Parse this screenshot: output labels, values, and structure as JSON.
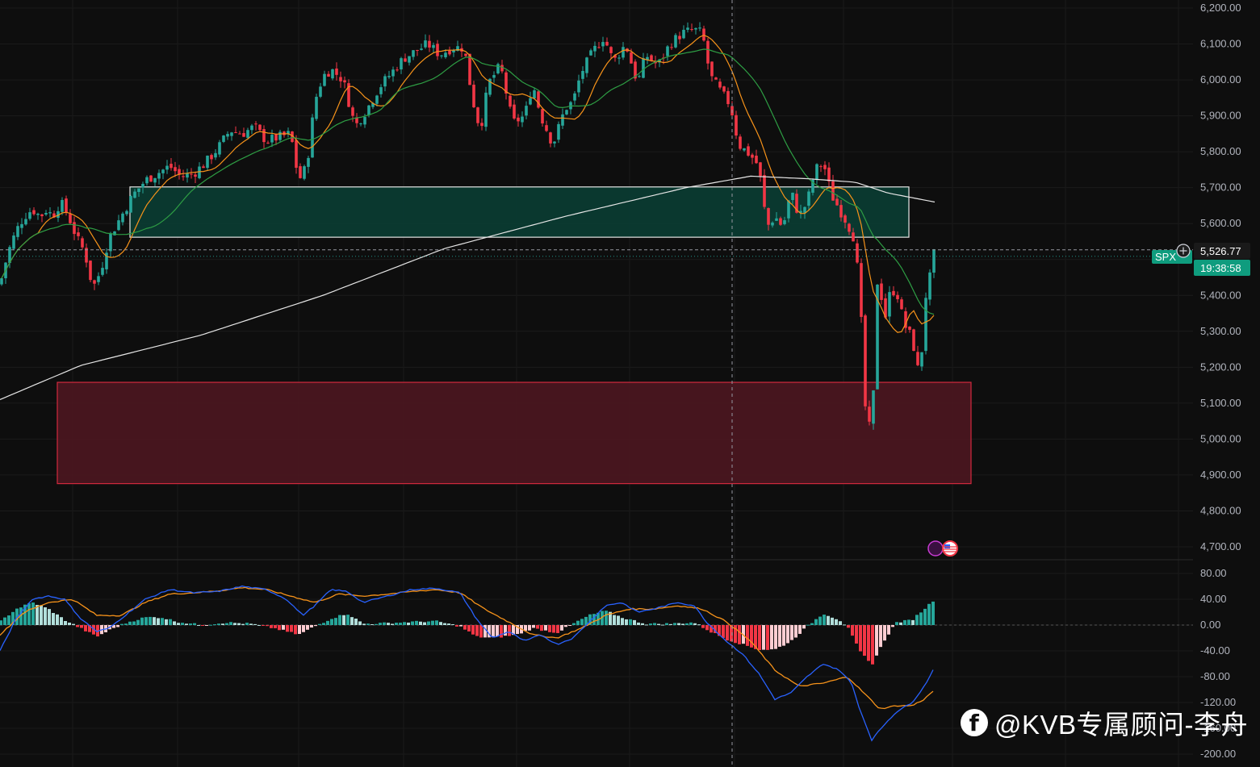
{
  "chart_data": [
    {
      "type": "candlestick",
      "symbol_tag": "SPX",
      "price_axis": {
        "ticks": [
          "6,200.00",
          "6,100.00",
          "6,000.00",
          "5,900.00",
          "5,800.00",
          "5,700.00",
          "5,600.00",
          "5,400.00",
          "5,300.00",
          "5,200.00",
          "5,100.00",
          "5,000.00",
          "4,900.00",
          "4,800.00",
          "4,700.00"
        ],
        "tick_values": [
          6200,
          6100,
          6000,
          5900,
          5800,
          5700,
          5600,
          5400,
          5300,
          5200,
          5100,
          5000,
          4900,
          4800,
          4700
        ],
        "ylim": [
          4680,
          6230
        ]
      },
      "last_price": 5526.77,
      "last_price_label": "5,526.77",
      "countdown": "19:38:58",
      "zones": [
        {
          "name": "resistance zone",
          "color": "#0b3b32",
          "border": "#e6e6e6",
          "y_top": 5702,
          "y_bottom": 5562
        },
        {
          "name": "support zone",
          "color": "#4a1620",
          "border": "#d2293e",
          "y_top": 5158,
          "y_bottom": 4876
        }
      ],
      "colors": {
        "up": "#26a69a",
        "down": "#f23645",
        "ma_fast": "#f7931a",
        "ma_mid": "#2e9e44",
        "ma_slow": "#e6e6e6"
      },
      "anchors": {
        "close": [
          [
            0,
            5430
          ],
          [
            10,
            5520
          ],
          [
            20,
            5580
          ],
          [
            30,
            5620
          ],
          [
            40,
            5640
          ],
          [
            50,
            5620
          ],
          [
            58,
            5640
          ],
          [
            65,
            5620
          ],
          [
            75,
            5660
          ],
          [
            85,
            5620
          ],
          [
            95,
            5560
          ],
          [
            105,
            5520
          ],
          [
            115,
            5420
          ],
          [
            125,
            5470
          ],
          [
            135,
            5560
          ],
          [
            150,
            5620
          ],
          [
            165,
            5680
          ],
          [
            180,
            5720
          ],
          [
            195,
            5740
          ],
          [
            210,
            5760
          ],
          [
            225,
            5730
          ],
          [
            240,
            5740
          ],
          [
            255,
            5770
          ],
          [
            270,
            5810
          ],
          [
            285,
            5860
          ],
          [
            300,
            5850
          ],
          [
            315,
            5870
          ],
          [
            330,
            5830
          ],
          [
            345,
            5840
          ],
          [
            360,
            5850
          ],
          [
            370,
            5720
          ],
          [
            380,
            5760
          ],
          [
            390,
            5940
          ],
          [
            400,
            6010
          ],
          [
            410,
            6030
          ],
          [
            425,
            6000
          ],
          [
            440,
            5870
          ],
          [
            455,
            5920
          ],
          [
            470,
            5980
          ],
          [
            485,
            6020
          ],
          [
            500,
            6060
          ],
          [
            515,
            6080
          ],
          [
            530,
            6100
          ],
          [
            545,
            6070
          ],
          [
            560,
            6090
          ],
          [
            575,
            6090
          ],
          [
            585,
            5950
          ],
          [
            595,
            5860
          ],
          [
            605,
            5990
          ],
          [
            620,
            6040
          ],
          [
            635,
            5880
          ],
          [
            650,
            5900
          ],
          [
            660,
            5990
          ],
          [
            670,
            5900
          ],
          [
            685,
            5820
          ],
          [
            700,
            5920
          ],
          [
            710,
            5940
          ],
          [
            720,
            6020
          ],
          [
            735,
            6080
          ],
          [
            748,
            6120
          ],
          [
            760,
            6050
          ],
          [
            775,
            6100
          ],
          [
            790,
            5990
          ],
          [
            800,
            6070
          ],
          [
            815,
            6040
          ],
          [
            830,
            6100
          ],
          [
            845,
            6130
          ],
          [
            860,
            6140
          ],
          [
            870,
            6130
          ],
          [
            880,
            6010
          ],
          [
            895,
            5960
          ],
          [
            905,
            5930
          ],
          [
            915,
            5820
          ],
          [
            930,
            5790
          ],
          [
            940,
            5760
          ],
          [
            950,
            5590
          ],
          [
            960,
            5620
          ],
          [
            970,
            5590
          ],
          [
            980,
            5690
          ],
          [
            990,
            5620
          ],
          [
            1000,
            5660
          ],
          [
            1010,
            5750
          ],
          [
            1020,
            5770
          ],
          [
            1030,
            5680
          ],
          [
            1040,
            5640
          ],
          [
            1050,
            5600
          ],
          [
            1058,
            5560
          ],
          [
            1065,
            5420
          ],
          [
            1072,
            5090
          ],
          [
            1080,
            5000
          ],
          [
            1088,
            5500
          ],
          [
            1095,
            5320
          ],
          [
            1102,
            5400
          ],
          [
            1110,
            5420
          ],
          [
            1120,
            5320
          ],
          [
            1130,
            5280
          ],
          [
            1140,
            5160
          ],
          [
            1145,
            5380
          ],
          [
            1152,
            5450
          ],
          [
            1158,
            5527
          ]
        ]
      },
      "macd": {
        "axis_ticks": [
          "80.00",
          "40.00",
          "0.00",
          "-40.00",
          "-80.00",
          "-120.00",
          "-160.00",
          "-200.00"
        ],
        "tick_values": [
          80,
          40,
          0,
          -40,
          -80,
          -120,
          -160,
          -200
        ],
        "ylim": [
          -205,
          90
        ],
        "colors": {
          "macd": "#2962ff",
          "signal": "#f7931a",
          "hist_up_strong": "#26a69a",
          "hist_up_weak": "#b2dfdb",
          "hist_down_strong": "#f23645",
          "hist_down_weak": "#ffcdd2"
        },
        "hist_anchors": [
          [
            0,
            5
          ],
          [
            20,
            25
          ],
          [
            40,
            35
          ],
          [
            60,
            25
          ],
          [
            80,
            8
          ],
          [
            100,
            -5
          ],
          [
            120,
            -18
          ],
          [
            140,
            -5
          ],
          [
            160,
            5
          ],
          [
            180,
            12
          ],
          [
            200,
            12
          ],
          [
            220,
            5
          ],
          [
            250,
            0
          ],
          [
            280,
            4
          ],
          [
            310,
            2
          ],
          [
            340,
            -5
          ],
          [
            370,
            -15
          ],
          [
            390,
            -2
          ],
          [
            410,
            10
          ],
          [
            430,
            18
          ],
          [
            450,
            2
          ],
          [
            480,
            3
          ],
          [
            510,
            5
          ],
          [
            540,
            6
          ],
          [
            570,
            -2
          ],
          [
            590,
            -18
          ],
          [
            610,
            -20
          ],
          [
            640,
            -15
          ],
          [
            660,
            -5
          ],
          [
            690,
            -12
          ],
          [
            710,
            2
          ],
          [
            730,
            15
          ],
          [
            750,
            22
          ],
          [
            770,
            12
          ],
          [
            800,
            2
          ],
          [
            830,
            2
          ],
          [
            860,
            4
          ],
          [
            880,
            -10
          ],
          [
            900,
            -22
          ],
          [
            920,
            -30
          ],
          [
            940,
            -38
          ],
          [
            960,
            -38
          ],
          [
            980,
            -25
          ],
          [
            1000,
            -2
          ],
          [
            1020,
            18
          ],
          [
            1040,
            8
          ],
          [
            1050,
            -3
          ],
          [
            1065,
            -40
          ],
          [
            1080,
            -62
          ],
          [
            1095,
            -25
          ],
          [
            1110,
            4
          ],
          [
            1130,
            8
          ],
          [
            1145,
            25
          ],
          [
            1158,
            40
          ]
        ],
        "macd_anchors": [
          [
            0,
            -40
          ],
          [
            20,
            10
          ],
          [
            40,
            40
          ],
          [
            60,
            45
          ],
          [
            80,
            40
          ],
          [
            100,
            10
          ],
          [
            120,
            -10
          ],
          [
            135,
            -5
          ],
          [
            155,
            15
          ],
          [
            180,
            40
          ],
          [
            210,
            55
          ],
          [
            240,
            50
          ],
          [
            270,
            52
          ],
          [
            300,
            60
          ],
          [
            330,
            55
          ],
          [
            355,
            40
          ],
          [
            375,
            15
          ],
          [
            390,
            30
          ],
          [
            410,
            55
          ],
          [
            430,
            52
          ],
          [
            450,
            35
          ],
          [
            480,
            45
          ],
          [
            510,
            55
          ],
          [
            540,
            57
          ],
          [
            570,
            50
          ],
          [
            590,
            10
          ],
          [
            610,
            -20
          ],
          [
            630,
            -10
          ],
          [
            650,
            -25
          ],
          [
            670,
            -15
          ],
          [
            690,
            -30
          ],
          [
            710,
            -20
          ],
          [
            730,
            5
          ],
          [
            750,
            30
          ],
          [
            770,
            35
          ],
          [
            790,
            20
          ],
          [
            810,
            25
          ],
          [
            840,
            35
          ],
          [
            860,
            30
          ],
          [
            875,
            5
          ],
          [
            900,
            -25
          ],
          [
            920,
            -45
          ],
          [
            940,
            -75
          ],
          [
            960,
            -115
          ],
          [
            980,
            -105
          ],
          [
            1000,
            -80
          ],
          [
            1020,
            -60
          ],
          [
            1040,
            -70
          ],
          [
            1055,
            -90
          ],
          [
            1065,
            -130
          ],
          [
            1080,
            -178
          ],
          [
            1095,
            -155
          ],
          [
            1110,
            -135
          ],
          [
            1130,
            -120
          ],
          [
            1145,
            -95
          ],
          [
            1158,
            -65
          ]
        ],
        "signal_anchors": [
          [
            0,
            -15
          ],
          [
            30,
            20
          ],
          [
            60,
            35
          ],
          [
            90,
            40
          ],
          [
            120,
            15
          ],
          [
            150,
            15
          ],
          [
            180,
            35
          ],
          [
            210,
            48
          ],
          [
            240,
            50
          ],
          [
            270,
            53
          ],
          [
            300,
            58
          ],
          [
            330,
            55
          ],
          [
            360,
            45
          ],
          [
            390,
            35
          ],
          [
            420,
            48
          ],
          [
            450,
            45
          ],
          [
            480,
            48
          ],
          [
            510,
            52
          ],
          [
            540,
            55
          ],
          [
            570,
            50
          ],
          [
            600,
            25
          ],
          [
            630,
            5
          ],
          [
            660,
            -15
          ],
          [
            690,
            -20
          ],
          [
            720,
            -5
          ],
          [
            750,
            15
          ],
          [
            780,
            25
          ],
          [
            810,
            25
          ],
          [
            840,
            30
          ],
          [
            870,
            25
          ],
          [
            900,
            5
          ],
          [
            930,
            -25
          ],
          [
            960,
            -70
          ],
          [
            990,
            -95
          ],
          [
            1020,
            -90
          ],
          [
            1050,
            -80
          ],
          [
            1070,
            -105
          ],
          [
            1090,
            -130
          ],
          [
            1110,
            -125
          ],
          [
            1130,
            -125
          ],
          [
            1145,
            -115
          ],
          [
            1158,
            -100
          ]
        ]
      }
    }
  ],
  "watermark": {
    "icon": "facebook-icon",
    "text": "@KVB专属顾问-李舟"
  }
}
